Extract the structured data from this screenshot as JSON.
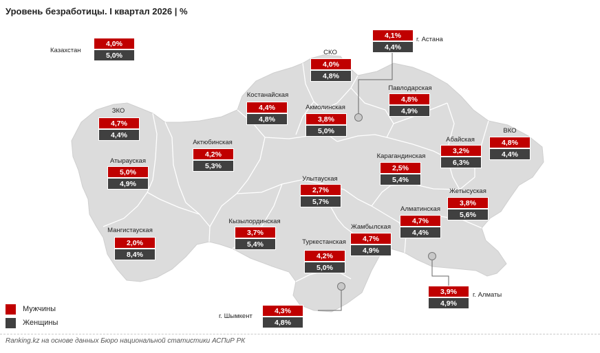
{
  "title": "Уровень безработицы. I квартал 2026 | %",
  "colors": {
    "men": "#c00000",
    "women": "#404040",
    "map_fill": "#dcdcdc",
    "map_stroke": "#ffffff"
  },
  "regions": [
    {
      "id": "kazakhstan",
      "name": "Казахстан",
      "men": "4,0%",
      "women": "5,0%"
    },
    {
      "id": "astana",
      "name": "г. Астана",
      "men": "4,1%",
      "women": "4,4%"
    },
    {
      "id": "sko",
      "name": "СКО",
      "men": "4,0%",
      "women": "4,8%"
    },
    {
      "id": "kostanay",
      "name": "Костанайская",
      "men": "4,4%",
      "women": "4,8%"
    },
    {
      "id": "akmola",
      "name": "Акмолинская",
      "men": "3,8%",
      "women": "5,0%"
    },
    {
      "id": "pavlodar",
      "name": "Павлодарская",
      "men": "4,8%",
      "women": "4,9%"
    },
    {
      "id": "zko",
      "name": "ЗКО",
      "men": "4,7%",
      "women": "4,4%"
    },
    {
      "id": "aktobe",
      "name": "Актюбинская",
      "men": "4,2%",
      "women": "5,3%"
    },
    {
      "id": "abai",
      "name": "Абайская",
      "men": "3,2%",
      "women": "6,3%"
    },
    {
      "id": "vko",
      "name": "ВКО",
      "men": "4,8%",
      "women": "4,4%"
    },
    {
      "id": "atyrau",
      "name": "Атырауская",
      "men": "5,0%",
      "women": "4,9%"
    },
    {
      "id": "karaganda",
      "name": "Карагандинская",
      "men": "2,5%",
      "women": "5,4%"
    },
    {
      "id": "ulytau",
      "name": "Улытауская",
      "men": "2,7%",
      "women": "5,7%"
    },
    {
      "id": "zhetysu",
      "name": "Жетысуская",
      "men": "3,8%",
      "women": "5,6%"
    },
    {
      "id": "mangystau",
      "name": "Мангистауская",
      "men": "2,0%",
      "women": "8,4%"
    },
    {
      "id": "kyzylorda",
      "name": "Кызылординская",
      "men": "3,7%",
      "women": "5,4%"
    },
    {
      "id": "almaty_region",
      "name": "Алматинская",
      "men": "4,7%",
      "women": "4,4%"
    },
    {
      "id": "zhambyl",
      "name": "Жамбылская",
      "men": "4,7%",
      "women": "4,9%"
    },
    {
      "id": "turkestan",
      "name": "Туркестанская",
      "men": "4,2%",
      "women": "5,0%"
    },
    {
      "id": "almaty_city",
      "name": "г. Алматы",
      "men": "3,9%",
      "women": "4,9%"
    },
    {
      "id": "shymkent",
      "name": "г. Шымкент",
      "men": "4,3%",
      "women": "4,8%"
    }
  ],
  "legend": {
    "men": "Мужчины",
    "women": "Женщины"
  },
  "source": "Ranking.kz на основе данных Бюро национальной статистики АСПиР РК"
}
